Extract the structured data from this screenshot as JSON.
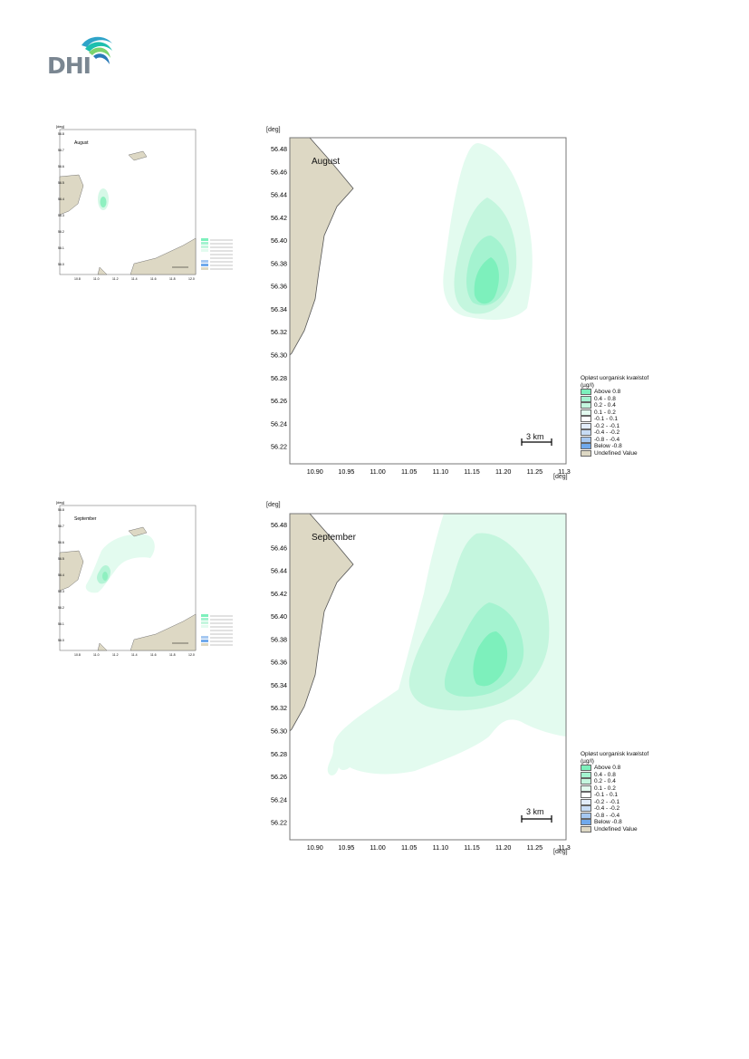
{
  "logo": {
    "text": "DHI"
  },
  "axis_unit": "[deg]",
  "colors": {
    "land": "#ddd8c4",
    "land_edge": "#555555",
    "frame": "#777777",
    "above_0.8": "#7df0bc",
    "0.4_0.8": "#a4f3d0",
    "0.2_0.4": "#c4f6de",
    "0.1_0.2": "#e3fbef",
    "-0.1_0.1": "#ffffff"
  },
  "legend": {
    "title_line1": "Opløst uorganisk kvælstof",
    "title_line2": "(µg/l)",
    "rows": [
      {
        "label": "Above  0.8",
        "color": "#7df0bc"
      },
      {
        "label": "0.4 -  0.8",
        "color": "#a4f3d0"
      },
      {
        "label": "0.2 -  0.4",
        "color": "#c4f6de"
      },
      {
        "label": "0.1 -  0.2",
        "color": "#e3fbef"
      },
      {
        "label": "-0.1 -  0.1",
        "color": "#ffffff"
      },
      {
        "label": "-0.2 - -0.1",
        "color": "#e2ecf9"
      },
      {
        "label": "-0.4 - -0.2",
        "color": "#c7dcf5"
      },
      {
        "label": "-0.8 - -0.4",
        "color": "#a6c8f1"
      },
      {
        "label": "Below -0.8",
        "color": "#6fa9ec"
      },
      {
        "label": "Undefined Value",
        "color": "#ddd8c4"
      }
    ]
  },
  "scale_bar": "3 km",
  "chart_data": [
    {
      "type": "map",
      "month": "August",
      "xlabel": "[deg]",
      "ylabel": "[deg]",
      "xlim": [
        10.86,
        11.3
      ],
      "ylim": [
        56.205,
        56.49
      ],
      "x_ticks": [
        "10.90",
        "10.95",
        "11.00",
        "11.05",
        "11.10",
        "11.15",
        "11.20",
        "11.25",
        "11.30"
      ],
      "y_ticks": [
        "56.48",
        "56.46",
        "56.44",
        "56.42",
        "56.40",
        "56.38",
        "56.36",
        "56.34",
        "56.32",
        "56.30",
        "56.28",
        "56.26",
        "56.24",
        "56.22"
      ],
      "plume_center": [
        11.175,
        56.365
      ],
      "legend_title": "Opløst uorganisk kvælstof (µg/l)"
    },
    {
      "type": "map",
      "month": "September",
      "xlabel": "[deg]",
      "ylabel": "[deg]",
      "xlim": [
        10.86,
        11.3
      ],
      "ylim": [
        56.205,
        56.49
      ],
      "x_ticks": [
        "10.90",
        "10.95",
        "11.00",
        "11.05",
        "11.10",
        "11.15",
        "11.20",
        "11.25",
        "11.30"
      ],
      "y_ticks": [
        "56.48",
        "56.46",
        "56.44",
        "56.42",
        "56.40",
        "56.38",
        "56.36",
        "56.34",
        "56.32",
        "56.30",
        "56.28",
        "56.26",
        "56.24",
        "56.22"
      ],
      "plume_center": [
        11.18,
        56.36
      ],
      "legend_title": "Opløst uorganisk kvælstof (µg/l)"
    }
  ],
  "thumb_y_ticks": [
    "56.8",
    "56.7",
    "56.6",
    "56.5",
    "56.4",
    "56.3",
    "56.2",
    "56.1",
    "56.0"
  ],
  "thumb_x_ticks": [
    "10.8",
    "11.0",
    "11.2",
    "11.4",
    "11.6",
    "11.8",
    "12.0"
  ]
}
